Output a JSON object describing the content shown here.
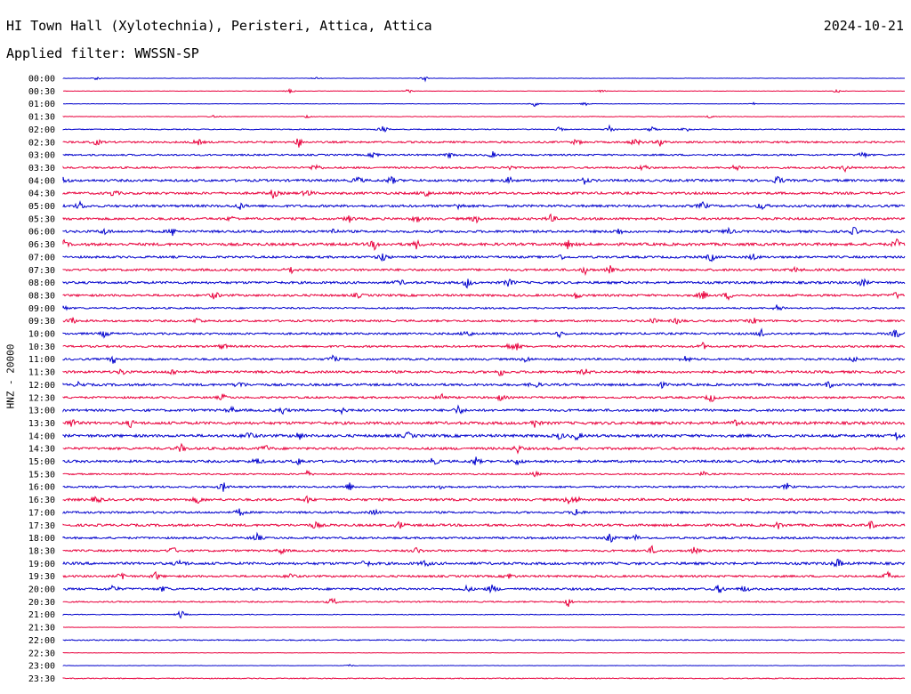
{
  "header": {
    "title": "HI Town Hall (Xylotechnia), Peristeri, Attica, Attica",
    "date": "2024-10-21",
    "filter": "Applied filter: WWSSN-SP",
    "channel_label": "HNZ - 20000"
  },
  "colors": {
    "blue": "#0000cc",
    "red": "#e8003c"
  },
  "chart_data": {
    "type": "line",
    "title": "HI Town Hall (Xylotechnia), Peristeri, Attica, Attica",
    "ylabel": "HNZ - 20000",
    "grid": false,
    "rows": [
      {
        "time": "00:00",
        "color": "blue",
        "noise": 0.2,
        "events": [
          [
            0.04,
            2.5
          ],
          [
            0.3,
            2
          ],
          [
            0.43,
            3
          ]
        ]
      },
      {
        "time": "00:30",
        "color": "red",
        "noise": 0.2,
        "events": [
          [
            0.27,
            3
          ],
          [
            0.41,
            3
          ],
          [
            0.64,
            2
          ],
          [
            0.92,
            3
          ]
        ]
      },
      {
        "time": "01:00",
        "color": "blue",
        "noise": 0.2,
        "events": [
          [
            0.56,
            3
          ],
          [
            0.62,
            2.5
          ],
          [
            0.82,
            2
          ]
        ]
      },
      {
        "time": "01:30",
        "color": "red",
        "noise": 0.35,
        "events": [
          [
            0.18,
            2
          ],
          [
            0.29,
            2
          ],
          [
            0.77,
            2.5
          ]
        ]
      },
      {
        "time": "02:00",
        "color": "blue",
        "noise": 0.5,
        "events": [
          [
            0.38,
            6
          ],
          [
            0.59,
            3
          ],
          [
            0.65,
            6
          ],
          [
            0.7,
            4
          ],
          [
            0.74,
            4
          ]
        ]
      },
      {
        "time": "02:30",
        "color": "red",
        "noise": 1.0,
        "events": [
          [
            0.04,
            4
          ],
          [
            0.16,
            4
          ],
          [
            0.28,
            6
          ],
          [
            0.61,
            4
          ],
          [
            0.68,
            6
          ],
          [
            0.71,
            5
          ]
        ]
      },
      {
        "time": "03:00",
        "color": "blue",
        "noise": 0.9,
        "events": [
          [
            0.37,
            5
          ],
          [
            0.46,
            4
          ],
          [
            0.51,
            4
          ],
          [
            0.95,
            5
          ]
        ]
      },
      {
        "time": "03:30",
        "color": "red",
        "noise": 1.0,
        "events": [
          [
            0.3,
            6
          ],
          [
            0.53,
            4
          ],
          [
            0.69,
            5
          ],
          [
            0.8,
            5
          ],
          [
            0.93,
            5
          ]
        ]
      },
      {
        "time": "04:00",
        "color": "blue",
        "noise": 1.3,
        "events": [
          [
            0.0,
            5
          ],
          [
            0.35,
            5
          ],
          [
            0.39,
            5
          ],
          [
            0.53,
            4
          ],
          [
            0.62,
            4
          ],
          [
            0.85,
            6
          ]
        ]
      },
      {
        "time": "04:30",
        "color": "red",
        "noise": 1.3,
        "events": [
          [
            0.06,
            4
          ],
          [
            0.25,
            6
          ],
          [
            0.29,
            5
          ],
          [
            0.43,
            6
          ]
        ]
      },
      {
        "time": "05:00",
        "color": "blue",
        "noise": 1.3,
        "events": [
          [
            0.02,
            5
          ],
          [
            0.21,
            4
          ],
          [
            0.47,
            4
          ],
          [
            0.76,
            5
          ],
          [
            0.83,
            5
          ]
        ]
      },
      {
        "time": "05:30",
        "color": "red",
        "noise": 1.3,
        "events": [
          [
            0.2,
            3
          ],
          [
            0.34,
            4
          ],
          [
            0.42,
            4
          ],
          [
            0.49,
            5
          ],
          [
            0.58,
            5
          ]
        ]
      },
      {
        "time": "06:00",
        "color": "blue",
        "noise": 1.3,
        "events": [
          [
            0.05,
            4
          ],
          [
            0.13,
            4
          ],
          [
            0.32,
            4
          ],
          [
            0.66,
            4
          ],
          [
            0.79,
            4
          ],
          [
            0.94,
            5
          ]
        ]
      },
      {
        "time": "06:30",
        "color": "red",
        "noise": 1.5,
        "events": [
          [
            0.0,
            5
          ],
          [
            0.37,
            6
          ],
          [
            0.42,
            5
          ],
          [
            0.6,
            5
          ],
          [
            0.99,
            6
          ]
        ]
      },
      {
        "time": "07:00",
        "color": "blue",
        "noise": 1.2,
        "events": [
          [
            0.38,
            6
          ],
          [
            0.59,
            4
          ],
          [
            0.77,
            5
          ],
          [
            0.82,
            4
          ]
        ]
      },
      {
        "time": "07:30",
        "color": "red",
        "noise": 1.2,
        "events": [
          [
            0.27,
            5
          ],
          [
            0.62,
            5
          ],
          [
            0.65,
            4
          ],
          [
            0.87,
            3
          ]
        ]
      },
      {
        "time": "08:00",
        "color": "blue",
        "noise": 1.3,
        "events": [
          [
            0.4,
            4
          ],
          [
            0.48,
            6
          ],
          [
            0.53,
            5
          ],
          [
            0.95,
            5
          ]
        ]
      },
      {
        "time": "08:30",
        "color": "red",
        "noise": 1.2,
        "events": [
          [
            0.18,
            5
          ],
          [
            0.35,
            3
          ],
          [
            0.61,
            4
          ],
          [
            0.76,
            6
          ],
          [
            0.79,
            5
          ],
          [
            0.99,
            4
          ]
        ]
      },
      {
        "time": "09:00",
        "color": "blue",
        "noise": 0.9,
        "events": [
          [
            0.0,
            4
          ],
          [
            0.85,
            6
          ]
        ]
      },
      {
        "time": "09:30",
        "color": "red",
        "noise": 1.1,
        "events": [
          [
            0.01,
            5
          ],
          [
            0.16,
            4
          ],
          [
            0.7,
            4
          ],
          [
            0.73,
            4
          ],
          [
            0.82,
            4
          ]
        ]
      },
      {
        "time": "10:00",
        "color": "blue",
        "noise": 1.1,
        "events": [
          [
            0.05,
            5
          ],
          [
            0.48,
            6
          ],
          [
            0.59,
            4
          ],
          [
            0.83,
            6
          ],
          [
            0.99,
            6
          ]
        ]
      },
      {
        "time": "10:30",
        "color": "red",
        "noise": 1.1,
        "events": [
          [
            0.19,
            4
          ],
          [
            0.53,
            4
          ],
          [
            0.54,
            4
          ],
          [
            0.76,
            4
          ]
        ]
      },
      {
        "time": "11:00",
        "color": "blue",
        "noise": 1.1,
        "events": [
          [
            0.06,
            5
          ],
          [
            0.32,
            5
          ],
          [
            0.55,
            4
          ],
          [
            0.74,
            5
          ],
          [
            0.94,
            4
          ]
        ]
      },
      {
        "time": "11:30",
        "color": "red",
        "noise": 1.3,
        "events": [
          [
            0.07,
            4
          ],
          [
            0.13,
            4
          ],
          [
            0.52,
            5
          ],
          [
            0.62,
            4
          ]
        ]
      },
      {
        "time": "12:00",
        "color": "blue",
        "noise": 1.3,
        "events": [
          [
            0.02,
            4
          ],
          [
            0.21,
            5
          ],
          [
            0.56,
            5
          ],
          [
            0.71,
            4
          ],
          [
            0.91,
            4
          ]
        ]
      },
      {
        "time": "12:30",
        "color": "red",
        "noise": 1.1,
        "events": [
          [
            0.19,
            4
          ],
          [
            0.45,
            5
          ],
          [
            0.52,
            4
          ],
          [
            0.77,
            6
          ]
        ]
      },
      {
        "time": "13:00",
        "color": "blue",
        "noise": 1.3,
        "events": [
          [
            0.2,
            4
          ],
          [
            0.26,
            5
          ],
          [
            0.33,
            4
          ],
          [
            0.47,
            6
          ]
        ]
      },
      {
        "time": "13:30",
        "color": "red",
        "noise": 1.5,
        "events": [
          [
            0.01,
            6
          ],
          [
            0.08,
            4
          ],
          [
            0.56,
            5
          ],
          [
            0.8,
            5
          ]
        ]
      },
      {
        "time": "14:00",
        "color": "blue",
        "noise": 1.5,
        "events": [
          [
            0.22,
            6
          ],
          [
            0.28,
            5
          ],
          [
            0.41,
            4
          ],
          [
            0.59,
            4
          ],
          [
            0.61,
            5
          ],
          [
            0.99,
            5
          ]
        ]
      },
      {
        "time": "14:30",
        "color": "red",
        "noise": 1.3,
        "events": [
          [
            0.14,
            5
          ],
          [
            0.24,
            5
          ],
          [
            0.54,
            5
          ]
        ]
      },
      {
        "time": "15:00",
        "color": "blue",
        "noise": 1.3,
        "events": [
          [
            0.23,
            5
          ],
          [
            0.28,
            4
          ],
          [
            0.44,
            5
          ],
          [
            0.49,
            5
          ],
          [
            0.54,
            4
          ]
        ]
      },
      {
        "time": "15:30",
        "color": "red",
        "noise": 0.8,
        "events": [
          [
            0.29,
            4
          ],
          [
            0.56,
            4
          ],
          [
            0.76,
            3
          ]
        ]
      },
      {
        "time": "16:00",
        "color": "blue",
        "noise": 1.0,
        "events": [
          [
            0.19,
            6
          ],
          [
            0.34,
            5
          ],
          [
            0.45,
            4
          ],
          [
            0.86,
            4
          ]
        ]
      },
      {
        "time": "16:30",
        "color": "red",
        "noise": 1.3,
        "events": [
          [
            0.04,
            5
          ],
          [
            0.16,
            5
          ],
          [
            0.29,
            4
          ],
          [
            0.6,
            5
          ],
          [
            0.61,
            4
          ]
        ]
      },
      {
        "time": "17:00",
        "color": "blue",
        "noise": 1.1,
        "events": [
          [
            0.21,
            5
          ],
          [
            0.37,
            4
          ],
          [
            0.61,
            6
          ]
        ]
      },
      {
        "time": "17:30",
        "color": "red",
        "noise": 1.3,
        "events": [
          [
            0.3,
            5
          ],
          [
            0.4,
            5
          ],
          [
            0.85,
            4
          ],
          [
            0.96,
            5
          ]
        ]
      },
      {
        "time": "18:00",
        "color": "blue",
        "noise": 1.1,
        "events": [
          [
            0.23,
            6
          ],
          [
            0.65,
            6
          ],
          [
            0.68,
            4
          ]
        ]
      },
      {
        "time": "18:30",
        "color": "red",
        "noise": 1.1,
        "events": [
          [
            0.13,
            5
          ],
          [
            0.26,
            4
          ],
          [
            0.42,
            4
          ],
          [
            0.7,
            5
          ],
          [
            0.75,
            4
          ]
        ]
      },
      {
        "time": "19:00",
        "color": "blue",
        "noise": 1.4,
        "events": [
          [
            0.14,
            5
          ],
          [
            0.36,
            5
          ],
          [
            0.43,
            4
          ],
          [
            0.92,
            6
          ]
        ]
      },
      {
        "time": "19:30",
        "color": "red",
        "noise": 1.1,
        "events": [
          [
            0.07,
            6
          ],
          [
            0.11,
            5
          ],
          [
            0.27,
            4
          ],
          [
            0.53,
            4
          ],
          [
            0.98,
            6
          ]
        ]
      },
      {
        "time": "20:00",
        "color": "blue",
        "noise": 1.2,
        "events": [
          [
            0.06,
            5
          ],
          [
            0.12,
            4
          ],
          [
            0.48,
            4
          ],
          [
            0.51,
            6
          ],
          [
            0.78,
            6
          ],
          [
            0.81,
            4
          ]
        ]
      },
      {
        "time": "20:30",
        "color": "red",
        "noise": 0.7,
        "events": [
          [
            0.32,
            6
          ],
          [
            0.6,
            6
          ]
        ]
      },
      {
        "time": "21:00",
        "color": "blue",
        "noise": 0.4,
        "events": [
          [
            0.14,
            6
          ]
        ]
      },
      {
        "time": "21:30",
        "color": "red",
        "noise": 0.2,
        "events": []
      },
      {
        "time": "22:00",
        "color": "blue",
        "noise": 0.6,
        "events": []
      },
      {
        "time": "22:30",
        "color": "red",
        "noise": 0.2,
        "events": []
      },
      {
        "time": "23:00",
        "color": "blue",
        "noise": 0.2,
        "events": [
          [
            0.34,
            2
          ]
        ]
      },
      {
        "time": "23:30",
        "color": "red",
        "noise": 0.5,
        "events": []
      }
    ]
  }
}
